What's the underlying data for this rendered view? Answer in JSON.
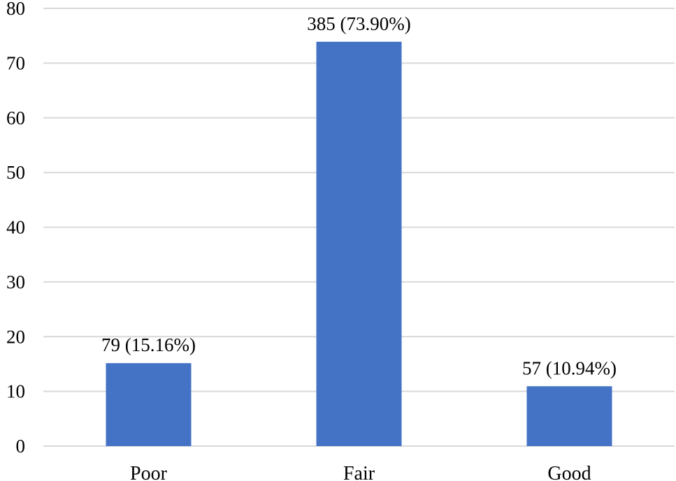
{
  "chart_data": {
    "type": "bar",
    "categories": [
      "Poor",
      "Fair",
      "Good"
    ],
    "values": [
      15.16,
      73.9,
      10.94
    ],
    "data_labels": [
      "79 (15.16%)",
      "385 (73.90%)",
      "57 (10.94%)"
    ],
    "title": "",
    "xlabel": "",
    "ylabel": "",
    "ylim": [
      0,
      80
    ],
    "yticks": [
      0,
      10,
      20,
      30,
      40,
      50,
      60,
      70,
      80
    ],
    "grid": true,
    "legend": "none",
    "bar_color": "#4472c4",
    "grid_color": "#d9d9d9"
  }
}
